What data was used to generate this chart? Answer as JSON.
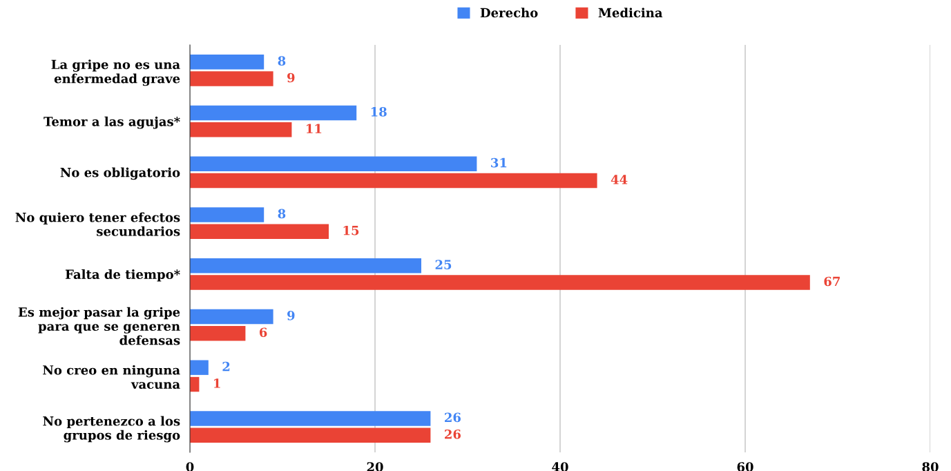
{
  "chart_data": {
    "type": "bar",
    "orientation": "horizontal",
    "categories": [
      "La gripe no es una\nenfermedad grave",
      "Temor a las agujas*",
      "No es obligatorio",
      "No quiero tener efectos\nsecundarios",
      "Falta de tiempo*",
      "Es mejor pasar la gripe\npara que se generen\ndefensas",
      "No creo en ninguna\nvacuna",
      "No pertenezco a los\ngrupos de riesgo"
    ],
    "series": [
      {
        "name": "Derecho",
        "color": "#4285f4",
        "values": [
          8,
          18,
          31,
          8,
          25,
          9,
          2,
          26
        ]
      },
      {
        "name": "Medicina",
        "color": "#ea4335",
        "values": [
          9,
          11,
          44,
          15,
          67,
          6,
          1,
          26
        ]
      }
    ],
    "xlim": [
      0,
      80
    ],
    "xticks": [
      0,
      20,
      40,
      60,
      80
    ],
    "grid": "x",
    "legend": "top",
    "data_labels": true
  }
}
